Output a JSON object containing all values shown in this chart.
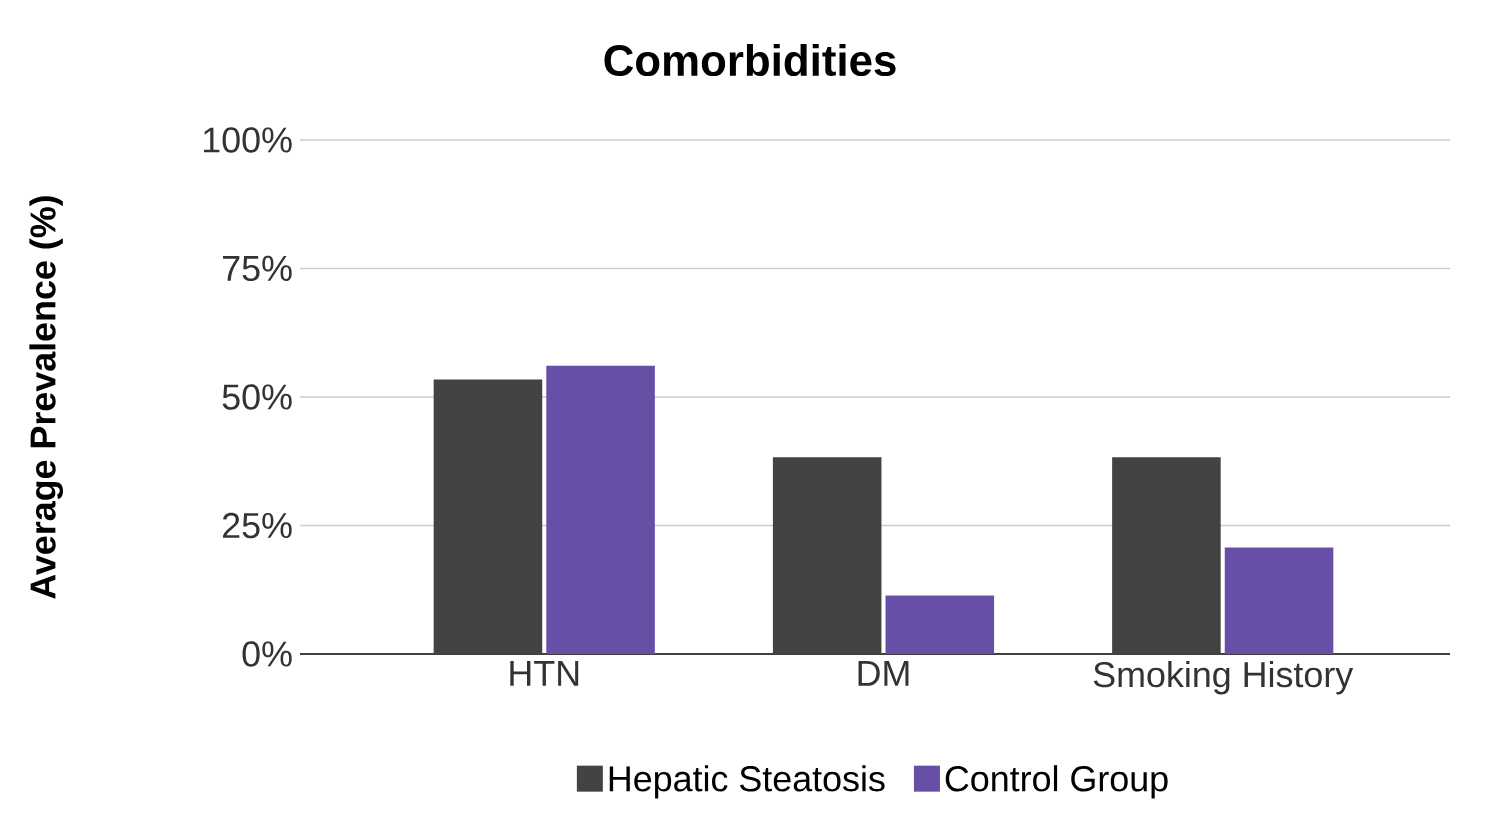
{
  "chart_data": {
    "type": "bar",
    "title": "Comorbidities",
    "ylabel": "Average Prevalence (%)",
    "categories": [
      "HTN",
      "DM",
      "Smoking History"
    ],
    "series": [
      {
        "name": "Hepatic Steatosis",
        "color": "#434343",
        "values": [
          53.4,
          38.3,
          38.3
        ]
      },
      {
        "name": "Control Group",
        "color": "#674ea7",
        "values": [
          56.1,
          11.4,
          20.7
        ]
      }
    ],
    "ylim": [
      0,
      100
    ],
    "yticks": [
      {
        "value": 0,
        "label": "0%"
      },
      {
        "value": 25,
        "label": "25%"
      },
      {
        "value": 50,
        "label": "50%"
      },
      {
        "value": 75,
        "label": "75%"
      },
      {
        "value": 100,
        "label": "100%"
      }
    ],
    "grid": "y",
    "legend": "bottom"
  }
}
